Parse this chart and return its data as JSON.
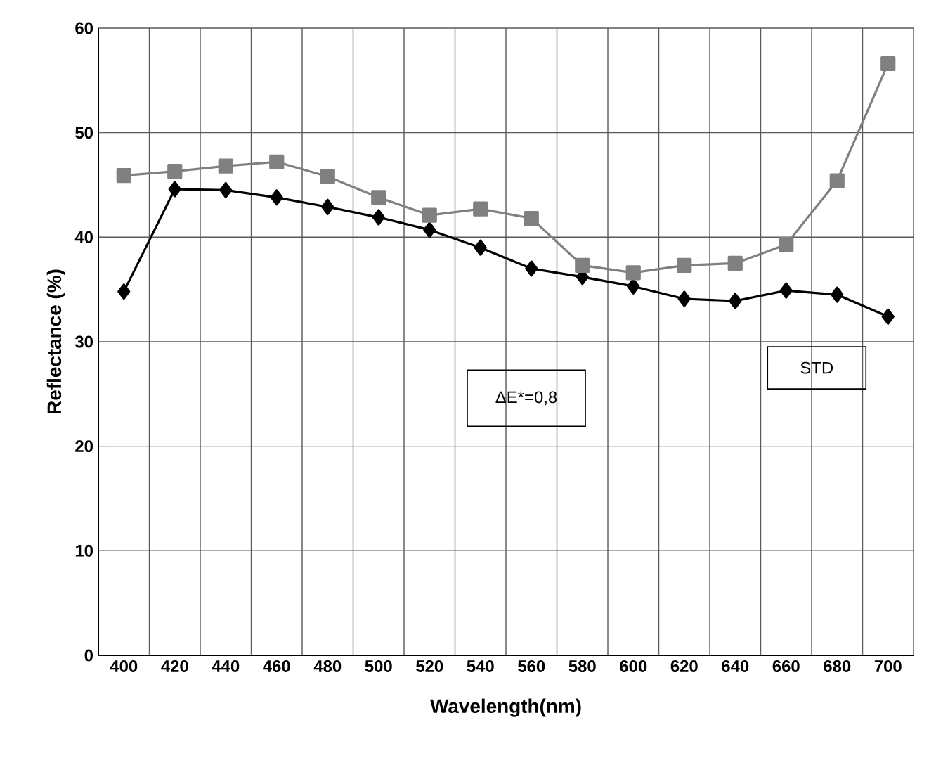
{
  "chart_data": {
    "type": "line",
    "xlabel": "Wavelength(nm)",
    "ylabel": "Reflectance (%)",
    "categories": [
      "400",
      "420",
      "440",
      "460",
      "480",
      "500",
      "520",
      "540",
      "560",
      "580",
      "600",
      "620",
      "640",
      "660",
      "680",
      "700"
    ],
    "series": [
      {
        "name": "STD",
        "color": "#000000",
        "marker": "diamond",
        "values": [
          34.8,
          44.6,
          44.5,
          43.8,
          42.9,
          41.9,
          40.7,
          39.0,
          37.0,
          36.2,
          35.3,
          34.1,
          33.9,
          34.9,
          34.5,
          32.4
        ]
      },
      {
        "color": "#808080",
        "marker": "square",
        "values": [
          45.9,
          46.3,
          46.8,
          47.2,
          45.8,
          43.8,
          42.1,
          42.7,
          41.8,
          37.3,
          36.6,
          37.3,
          37.5,
          39.3,
          45.4,
          56.6
        ]
      }
    ],
    "annotations": [
      "ΔE*=0,8"
    ],
    "ylim": [
      0,
      60
    ],
    "yticks": [
      0,
      10,
      20,
      30,
      40,
      50,
      60
    ],
    "grid": true
  }
}
